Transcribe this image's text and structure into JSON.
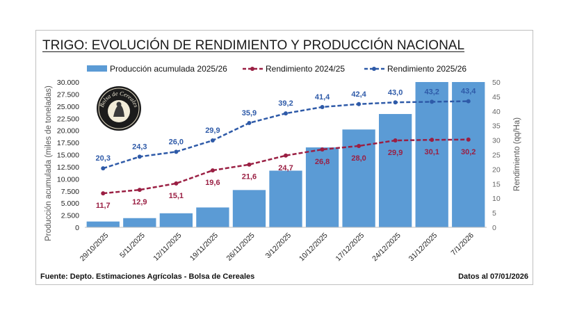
{
  "title": "TRIGO: EVOLUCIÓN DE RENDIMIENTO Y PRODUCCIÓN NACIONAL",
  "footer": {
    "source": "Fuente: Depto. Estimaciones Agrícolas - Bolsa de Cereales",
    "date": "Datos al 07/01/2026"
  },
  "logo": {
    "text": "Bolsa de Cereales"
  },
  "chart_data": {
    "type": "bar",
    "title": "TRIGO: EVOLUCIÓN DE RENDIMIENTO Y PRODUCCIÓN NACIONAL",
    "categories": [
      "29/10/2025",
      "5/11/2025",
      "12/11/2025",
      "19/11/2025",
      "26/11/2025",
      "3/12/2025",
      "10/12/2025",
      "17/12/2025",
      "24/12/2025",
      "31/12/2025",
      "7/1/2026"
    ],
    "ylabel": "Producción acumulada (miles de toneladas)",
    "y2label": "Rendimiento (qq/Ha)",
    "ylim": [
      0,
      30000
    ],
    "y2lim": [
      0,
      50
    ],
    "yticks": [
      "0",
      "2.500",
      "5.000",
      "7.500",
      "10.000",
      "12.500",
      "15.000",
      "17.500",
      "20.000",
      "22.500",
      "25.000",
      "27.500",
      "30.000"
    ],
    "y2ticks": [
      "0",
      "5",
      "10",
      "15",
      "20",
      "25",
      "30",
      "35",
      "40",
      "45",
      "50"
    ],
    "legend_position": "top",
    "series": [
      {
        "name": "Producción acumulada 2025/26",
        "type": "bar",
        "axis": "left",
        "color": "#5b9bd5",
        "values": [
          1200,
          1900,
          2900,
          4100,
          7700,
          11700,
          16500,
          20200,
          23400,
          30000,
          30000
        ]
      },
      {
        "name": "Rendimiento 2024/25",
        "type": "line",
        "axis": "right",
        "style": "dashed",
        "color": "#9a1f43",
        "values": [
          11.7,
          12.9,
          15.1,
          19.6,
          21.6,
          24.7,
          26.8,
          28.0,
          29.9,
          30.1,
          30.2
        ],
        "labels": [
          "11,7",
          "12,9",
          "15,1",
          "19,6",
          "21,6",
          "24,7",
          "26,8",
          "28,0",
          "29,9",
          "30,1",
          "30,2"
        ]
      },
      {
        "name": "Rendimiento 2025/26",
        "type": "line",
        "axis": "right",
        "style": "dashed",
        "color": "#2e5aa8",
        "values": [
          20.3,
          24.3,
          26.0,
          29.9,
          35.9,
          39.2,
          41.4,
          42.4,
          43.0,
          43.2,
          43.4
        ],
        "labels": [
          "20,3",
          "24,3",
          "26,0",
          "29,9",
          "35,9",
          "39,2",
          "41,4",
          "42,4",
          "43,0",
          "43,2",
          "43,4"
        ]
      }
    ]
  }
}
